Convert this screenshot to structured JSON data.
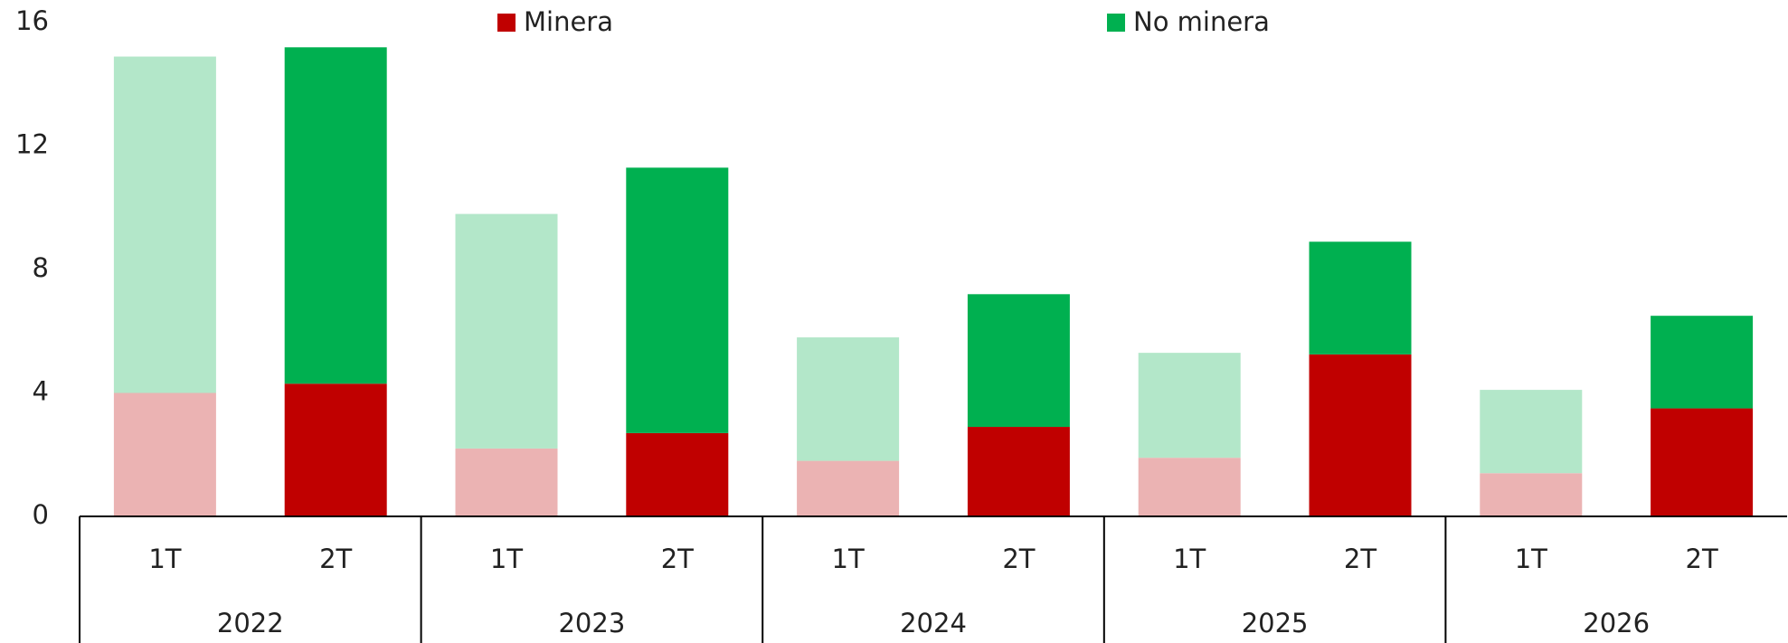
{
  "chart_data": {
    "type": "stacked_bar",
    "categories": [
      "1T",
      "2T",
      "1T",
      "2T",
      "1T",
      "2T",
      "1T",
      "2T",
      "1T",
      "2T"
    ],
    "groups": [
      "2022",
      "2023",
      "2024",
      "2025",
      "2026"
    ],
    "series": [
      {
        "name": "Minera",
        "color": "#c00000",
        "colors": [
          "#ebb3b3",
          "#c00000",
          "#ebb3b3",
          "#c00000",
          "#ebb3b3",
          "#c00000",
          "#ebb3b3",
          "#c00000",
          "#ebb3b3",
          "#c00000"
        ],
        "values": [
          4.0,
          4.3,
          2.2,
          2.7,
          1.8,
          2.9,
          1.9,
          5.25,
          1.4,
          3.5
        ]
      },
      {
        "name": "No minera",
        "color": "#00b050",
        "colors": [
          "#b3e7c9",
          "#00b050",
          "#b3e7c9",
          "#00b050",
          "#b3e7c9",
          "#00b050",
          "#b3e7c9",
          "#00b050",
          "#b3e7c9",
          "#00b050"
        ],
        "values": [
          10.9,
          10.9,
          7.6,
          8.6,
          4.0,
          4.3,
          3.4,
          3.65,
          2.7,
          3.0
        ]
      }
    ],
    "ylim": [
      0,
      16
    ],
    "yticks": [
      0,
      4,
      8,
      12,
      16
    ],
    "grid": false,
    "legend": "top"
  }
}
